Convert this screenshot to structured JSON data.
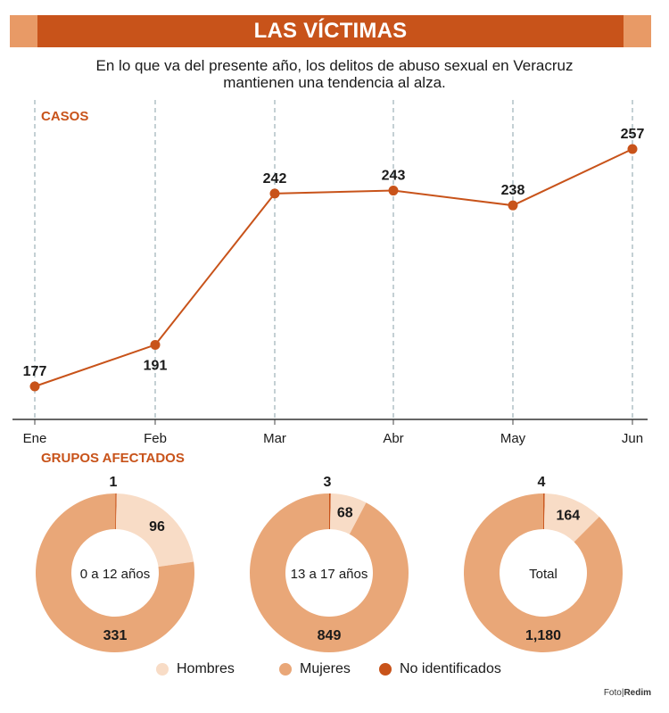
{
  "header": {
    "title": "LAS VÍCTIMAS",
    "subtitle_line1": "En lo que va del presente año, los delitos de abuso sexual en Veracruz",
    "subtitle_line2": "mantienen una tendencia al alza."
  },
  "colors": {
    "accent": "#c8531a",
    "hombres": "#f8dcc6",
    "mujeres": "#e9a778",
    "no_identificados": "#c8531a"
  },
  "chart_data": [
    {
      "type": "line",
      "title": "CASOS",
      "categories": [
        "Ene",
        "Feb",
        "Mar",
        "Abr",
        "May",
        "Jun"
      ],
      "values": [
        177,
        191,
        242,
        243,
        238,
        257
      ],
      "grid": "vertical dashed",
      "labels": [
        "177",
        "191",
        "242",
        "243",
        "238",
        "257"
      ]
    },
    {
      "type": "pie",
      "title": "GRUPOS AFECTADOS",
      "charts": [
        {
          "center_label": "0 a 12 años",
          "values": {
            "hombres": 96,
            "mujeres": 331,
            "no_identificados": 1
          },
          "labels": {
            "hombres": "96",
            "mujeres": "331",
            "no_identificados": "1"
          }
        },
        {
          "center_label": "13 a 17 años",
          "values": {
            "hombres": 68,
            "mujeres": 849,
            "no_identificados": 3
          },
          "labels": {
            "hombres": "68",
            "mujeres": "849",
            "no_identificados": "3"
          }
        },
        {
          "center_label": "Total",
          "values": {
            "hombres": 164,
            "mujeres": 1180,
            "no_identificados": 4
          },
          "labels": {
            "hombres": "164",
            "mujeres": "1,180",
            "no_identificados": "4"
          }
        }
      ],
      "legend": [
        "Hombres",
        "Mujeres",
        "No identificados"
      ]
    }
  ],
  "credit": {
    "prefix": "Foto",
    "source": "Redim"
  }
}
